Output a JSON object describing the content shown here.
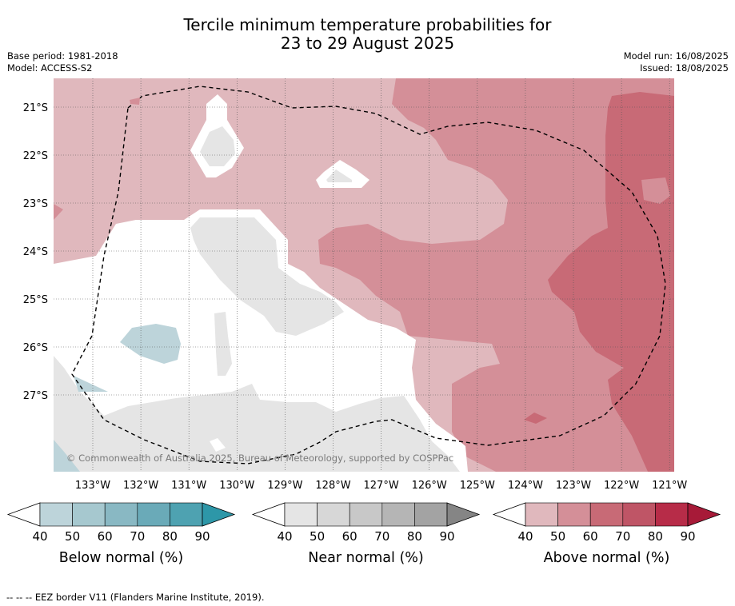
{
  "title": {
    "line1": "Tercile minimum temperature probabilities for",
    "line2": "23 to 29 August 2025"
  },
  "meta": {
    "base_period": "Base period: 1981-2018",
    "model": "Model: ACCESS-S2",
    "model_run": "Model run: 16/08/2025",
    "issued": "Issued: 18/08/2025"
  },
  "map": {
    "lat_labels": [
      "21°S",
      "22°S",
      "23°S",
      "24°S",
      "25°S",
      "26°S",
      "27°S"
    ],
    "lon_labels": [
      "133°W",
      "132°W",
      "131°W",
      "130°W",
      "129°W",
      "128°W",
      "127°W",
      "126°W",
      "125°W",
      "124°W",
      "123°W",
      "122°W",
      "121°W"
    ],
    "copyright": "© Commonwealth of Australia 2025, Bureau of Meteorology, supported by COSPPac",
    "footnote": "--  --  -- EEZ border V11 (Flanders Marine Institute, 2019)."
  },
  "colorbars": [
    {
      "title": "Below normal (%)",
      "ticks": [
        "40",
        "50",
        "60",
        "70",
        "80",
        "90"
      ],
      "colors": [
        "#ffffff",
        "#bdd4da",
        "#a6c8cf",
        "#89b8c3",
        "#6aaab8",
        "#4ea2b1",
        "#2d97a8"
      ]
    },
    {
      "title": "Near normal (%)",
      "ticks": [
        "40",
        "50",
        "60",
        "70",
        "80",
        "90"
      ],
      "colors": [
        "#ffffff",
        "#e5e5e5",
        "#d7d7d7",
        "#c8c8c8",
        "#b5b5b5",
        "#a3a3a3",
        "#858585"
      ]
    },
    {
      "title": "Above normal (%)",
      "ticks": [
        "40",
        "50",
        "60",
        "70",
        "80",
        "90"
      ],
      "colors": [
        "#ffffff",
        "#e0b8bd",
        "#d48f98",
        "#c86a76",
        "#bf5566",
        "#b72c48",
        "#a71a38"
      ]
    }
  ]
}
